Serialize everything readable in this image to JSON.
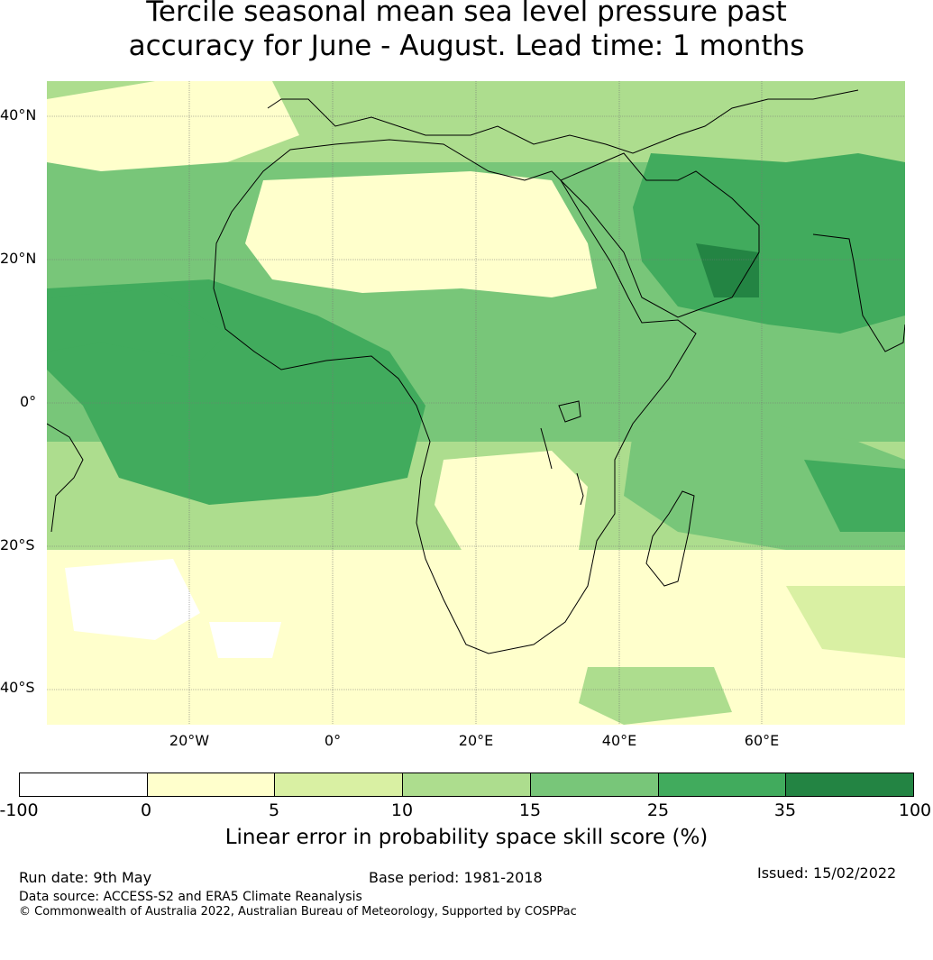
{
  "title": {
    "line1": "Tercile seasonal mean sea level pressure past",
    "line2": "accuracy for June - August. Lead time: 1 months"
  },
  "map": {
    "lat_labels": [
      "40°N",
      "20°N",
      "0°",
      "20°S",
      "40°S"
    ],
    "lon_labels": [
      "20°W",
      "0°",
      "20°E",
      "40°E",
      "60°E"
    ],
    "lon_range": [
      -40,
      80
    ],
    "lat_range": [
      -45,
      45
    ]
  },
  "colorbar": {
    "boundaries": [
      "-100",
      "0",
      "5",
      "10",
      "15",
      "25",
      "35",
      "100"
    ],
    "colors": [
      "#ffffff",
      "#ffffcc",
      "#d9f0a3",
      "#addd8e",
      "#78c679",
      "#41ab5d",
      "#238443"
    ],
    "label": "Linear error in probability space skill score (%)"
  },
  "footer": {
    "run_date": "Run date: 9th May",
    "base_period": "Base period: 1981-2018",
    "issued": "Issued: 15/02/2022",
    "data_source": "Data source: ACCESS-S2 and ERA5 Climate Reanalysis",
    "copyright": "© Commonwealth of Australia 2022, Australian Bureau of Meteorology, Supported by COSPPac"
  }
}
